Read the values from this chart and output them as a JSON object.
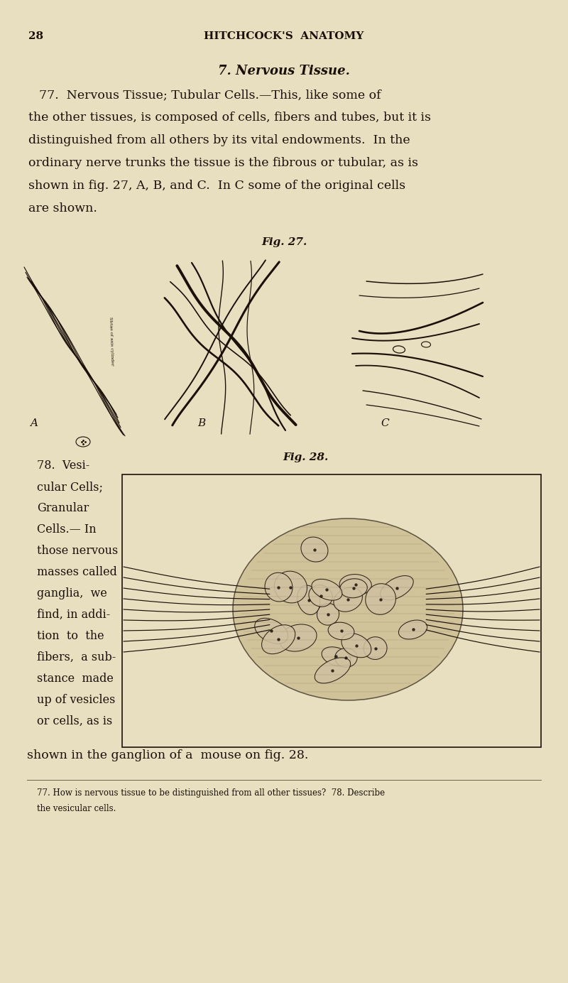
{
  "bg_color": "#e8dfc0",
  "text_color": "#1a1008",
  "page_number": "28",
  "header": "HITCHCOCK'S  ANATOMY",
  "section_title": "7. Nervous Tissue.",
  "fig27_label": "Fig. 27.",
  "fig28_label": "Fig. 28.",
  "footer_line1": "77. How is nervous tissue to be distinguished from all other tissues?  78. Describe",
  "footer_line2": "the vesicular cells.",
  "label_A": "A",
  "label_B": "B",
  "label_C": "C",
  "para1_lines": [
    "77.  Nervous Tissue; Tubular Cells.—This, like some of",
    "the other tissues, is composed of cells, fibers and tubes, but it is",
    "distinguished from all others by its vital endowments.  In the",
    "ordinary nerve trunks the tissue is the fibrous or tubular, as is",
    "shown in fig. 27, A, B, and C.  In C some of the original cells",
    "are shown."
  ],
  "para2_lines": [
    "78.  Vesi-",
    "cular Cells;",
    "Granular",
    "Cells.— In",
    "those nervous",
    "masses called",
    "ganglia,  we",
    "find, in addi-",
    "tion  to  the",
    "fibers,  a sub-",
    "stance  made",
    "up of vesicles",
    "or cells, as is"
  ],
  "para_end": "shown in the ganglion of a  mouse on fig. 28."
}
